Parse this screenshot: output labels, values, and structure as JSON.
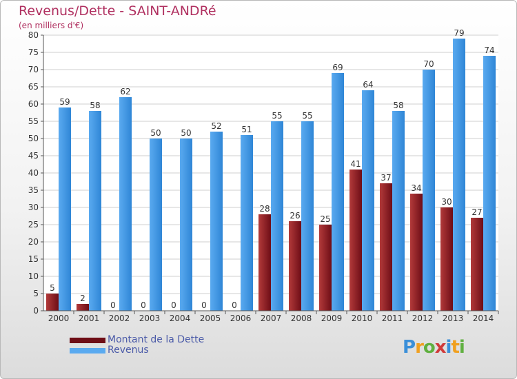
{
  "title": "Revenus/Dette - SAINT-ANDRé",
  "subtitle": "(en milliers d'€)",
  "legend": [
    {
      "label": "Montant de la Dette",
      "color": "#6e0d16"
    },
    {
      "label": "Revenus",
      "color": "#3d9be6"
    }
  ],
  "logo": {
    "text": "Proxiti",
    "letters": [
      "P",
      "r",
      "o",
      "x",
      "i",
      "t",
      "i"
    ],
    "colors": [
      "#3a8fd9",
      "#f0a020",
      "#60b040",
      "#d03a3a",
      "#3a8fd9",
      "#f0a020",
      "#60b040"
    ]
  },
  "chart_data": {
    "type": "bar",
    "categories": [
      "2000",
      "2001",
      "2002",
      "2003",
      "2004",
      "2005",
      "2006",
      "2007",
      "2008",
      "2009",
      "2010",
      "2011",
      "2012",
      "2013",
      "2014"
    ],
    "series": [
      {
        "name": "Montant de la Dette",
        "values": [
          5,
          2,
          0,
          0,
          0,
          0,
          0,
          28,
          26,
          25,
          41,
          37,
          34,
          30,
          27
        ],
        "color": "#6e0d16",
        "color_light": "#b23a3a"
      },
      {
        "name": "Revenus",
        "values": [
          59,
          58,
          62,
          50,
          50,
          52,
          51,
          55,
          55,
          69,
          64,
          58,
          70,
          79,
          74
        ],
        "color": "#2f86d6",
        "color_light": "#5aaaf0"
      }
    ],
    "ylim": [
      0,
      80
    ],
    "yticks": [
      0,
      5,
      10,
      15,
      20,
      25,
      30,
      35,
      40,
      45,
      50,
      55,
      60,
      65,
      70,
      75,
      80
    ],
    "grid": true,
    "legend_position": "bottom-left"
  }
}
